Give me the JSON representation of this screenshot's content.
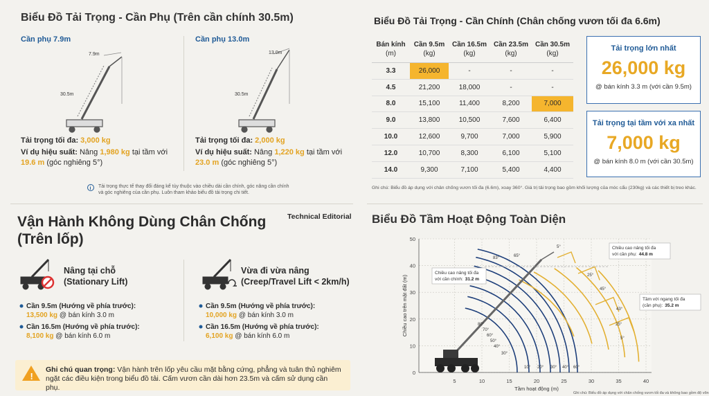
{
  "jib_section": {
    "title": "Biểu Đồ Tải Trọng - Cần Phụ (Trên cần chính 30.5m)",
    "panels": [
      {
        "label": "Cần phụ 7.9m",
        "jib_dim": "7.9m",
        "boom_dim": "30.5m",
        "load_label": "Tải trọng tối đa:",
        "load": "3,000 kg",
        "example_label": "Ví dụ hiệu suất:",
        "example_text": "Nâng",
        "example_load": "1,980 kg",
        "example_mid": "tại tầm với",
        "example_radius": "19.6 m",
        "example_end": "(góc nghiêng 5°)"
      },
      {
        "label": "Cần phụ 13.0m",
        "jib_dim": "13.0m",
        "boom_dim": "30.5m",
        "load_label": "Tải trọng tối đa:",
        "load": "2,000 kg",
        "example_label": "Ví dụ hiệu suất:",
        "example_text": "Nâng",
        "example_load": "1,220 kg",
        "example_mid": "tại tầm với",
        "example_radius": "23.0 m",
        "example_end": "(góc nghiêng 5°)"
      }
    ],
    "note": "Tải trọng thực tế thay đổi đáng kể tùy thuộc vào chiều dài cần chính, góc nâng cần chính và góc nghiêng của cần phụ. Luôn tham khảo biểu đồ tải trọng chi tiết."
  },
  "main_section": {
    "title": "Biểu Đồ Tải Trọng - Cần Chính (Chân chống vươn tối đa 6.6m)",
    "table": {
      "header": [
        "Bán kính",
        "Cần 9.5m",
        "Cần 16.5m",
        "Cần 23.5m",
        "Cần 30.5m"
      ],
      "units": [
        "(m)",
        "(kg)",
        "(kg)",
        "(kg)",
        "(kg)"
      ],
      "rows": [
        [
          "3.3",
          "26,000",
          "-",
          "-",
          "-"
        ],
        [
          "4.5",
          "21,200",
          "18,000",
          "-",
          "-"
        ],
        [
          "8.0",
          "15,100",
          "11,400",
          "8,200",
          "7,000"
        ],
        [
          "9.0",
          "13,800",
          "10,500",
          "7,600",
          "6,400"
        ],
        [
          "10.0",
          "12,600",
          "9,700",
          "7,000",
          "5,900"
        ],
        [
          "12.0",
          "10,700",
          "8,300",
          "6,100",
          "5,100"
        ],
        [
          "14.0",
          "9,300",
          "7,100",
          "5,400",
          "4,400"
        ]
      ]
    },
    "boxes": [
      {
        "title": "Tải trọng lớn nhất",
        "value": "26,000 kg",
        "detail": "@ bán kính 3.3 m (với cần 9.5m)"
      },
      {
        "title": "Tải trọng tại tầm với xa nhất",
        "value": "7,000 kg",
        "detail": "@ bán kính 8.0 m (với cần 30.5m)"
      }
    ],
    "note": "Ghi chú: Biểu đồ áp dụng với chân chống vươn tối đa (6.6m), xoay 360°. Giá trị tải trọng bao gồm khối lượng của móc cẩu (230kg) và các thiết bị treo khác."
  },
  "tire_section": {
    "title_line1": "Vận Hành Không Dùng Chân Chống",
    "title_line2": "(Trên lốp)",
    "tag": "Technical Editorial",
    "modes": [
      {
        "heading1": "Nâng tại chỗ",
        "heading2": "(Stationary Lift)",
        "items": [
          {
            "label": "Cần 9.5m (Hướng về phía trước):",
            "load": "13,500 kg",
            "radius": "@ bán kính 3.0 m"
          },
          {
            "label": "Cần 16.5m (Hướng về phía trước):",
            "load": "8,100 kg",
            "radius": "@ bán kính 6.0 m"
          }
        ]
      },
      {
        "heading1": "Vừa đi vừa nâng",
        "heading2": "(Creep/Travel Lift < 2km/h)",
        "items": [
          {
            "label": "Cần 9.5m (Hướng về phía trước):",
            "load": "10,000 kg",
            "radius": "@ bán kính 3.0 m"
          },
          {
            "label": "Cần 16.5m (Hướng về phía trước):",
            "load": "6,100 kg",
            "radius": "@ bán kính 6.0 m"
          }
        ]
      }
    ],
    "warning_label": "Ghi chú quan trọng:",
    "warning_text": "Vận hành trên lốp yêu cầu mặt bằng cứng, phẳng và tuân thủ nghiêm ngặt các điều kiện trong biểu đồ tải. Cấm vươn cần dài hơn 23.5m và cấm sử dụng cần phụ."
  },
  "range_chart": {
    "type": "range",
    "title": "Biểu Đồ Tầm Hoạt Động Toàn Diện",
    "xlabel": "Tầm hoạt động (m)",
    "ylabel": "Chiều cao trên mặt đất (m)",
    "xlim": [
      0,
      40
    ],
    "ylim": [
      0,
      50
    ],
    "xticks": [
      5,
      10,
      15,
      20,
      25,
      30,
      35,
      40
    ],
    "yticks": [
      0,
      10,
      20,
      30,
      40,
      50
    ],
    "grid": true,
    "annotations": [
      {
        "lines": [
          "Chiều cao nâng tối đa",
          "với cần phụ:"
        ],
        "value": "44.8 m"
      },
      {
        "lines": [
          "Chiều cao nâng tối đa",
          "với cần chính:"
        ],
        "value": "31.2 m"
      },
      {
        "lines": [
          "Tầm với ngang tối đa",
          "(cần phụ):"
        ],
        "value": "35.2 m"
      }
    ],
    "angle_labels": [
      "83°",
      "65°",
      "5°",
      "25°",
      "45°",
      "25°",
      "43°",
      "5°",
      "80°",
      "70°",
      "60°",
      "50°",
      "40°",
      "30°",
      "10°",
      "20°",
      "30°",
      "40°",
      "60°"
    ],
    "footnote": "Ghi chú: Biểu đồ áp dụng với chân chống vươn tối đa và không bao gồm độ võng của cần"
  }
}
